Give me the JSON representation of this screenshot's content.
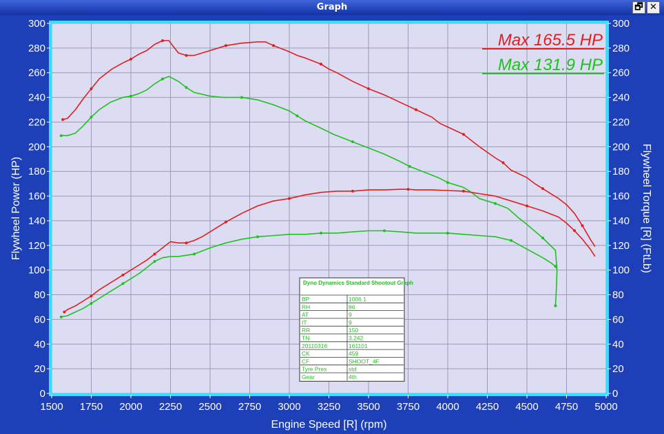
{
  "window": {
    "title": "Graph",
    "restore_icon": "restore-icon",
    "close_icon": "close-icon",
    "restore_glyph": "🗗",
    "close_glyph": "✕"
  },
  "colors": {
    "background": "#1d3fb8",
    "plot_bg": "#dcdcf2",
    "frame": "#33e0ff",
    "grid": "#9a9ab4",
    "red": "#e01e1e",
    "green": "#1ec21e",
    "axis_text": "#ffffff"
  },
  "chart_data": {
    "type": "line",
    "xlabel": "Engine Speed [R] (rpm)",
    "ylabel": "Flywheel Power (HP)",
    "y2label": "Flywheel Torque [R] (FtLb)",
    "xlim": [
      1500,
      5000
    ],
    "ylim": [
      0,
      300
    ],
    "y2lim": [
      0,
      300
    ],
    "xticks": [
      1500,
      1750,
      2000,
      2250,
      2500,
      2750,
      3000,
      3250,
      3500,
      3750,
      4000,
      4250,
      4500,
      4750,
      5000
    ],
    "yticks": [
      0,
      20,
      40,
      60,
      80,
      100,
      120,
      140,
      160,
      180,
      200,
      220,
      240,
      260,
      280,
      300
    ],
    "grid": true,
    "legend_position": "top-right",
    "legend": [
      {
        "text": "Max 165.5 HP",
        "color": "#e01e1e"
      },
      {
        "text": "Max 131.9 HP",
        "color": "#1ec21e"
      }
    ],
    "series": [
      {
        "color": "#e01e1e",
        "axis": "right",
        "markers": true,
        "x": [
          1570,
          1600,
          1650,
          1700,
          1750,
          1800,
          1880,
          1950,
          2000,
          2050,
          2100,
          2150,
          2200,
          2240,
          2270,
          2300,
          2350,
          2400,
          2450,
          2500,
          2600,
          2700,
          2800,
          2850,
          2900,
          3000,
          3050,
          3100,
          3200,
          3250,
          3300,
          3400,
          3500,
          3600,
          3700,
          3750,
          3800,
          3900,
          3950,
          4000,
          4100,
          4150,
          4200,
          4300,
          4350,
          4400,
          4500,
          4550,
          4600,
          4700,
          4750,
          4800,
          4850,
          4900,
          4930
        ],
        "y": [
          222,
          223,
          230,
          239,
          247,
          255,
          263,
          268,
          271,
          275,
          278,
          283,
          286,
          286,
          281,
          276,
          274,
          274,
          276,
          278,
          282,
          284,
          285,
          285,
          282,
          277,
          274,
          272,
          267,
          263,
          260,
          253,
          247,
          242,
          236,
          233,
          230,
          224,
          219,
          216,
          210,
          205,
          200,
          191,
          187,
          181,
          175,
          170,
          166,
          158,
          153,
          146,
          136,
          125,
          119
        ]
      },
      {
        "color": "#1ec21e",
        "axis": "right",
        "markers": true,
        "x": [
          1560,
          1600,
          1650,
          1700,
          1750,
          1800,
          1870,
          1950,
          2000,
          2050,
          2100,
          2150,
          2200,
          2240,
          2270,
          2300,
          2350,
          2400,
          2500,
          2580,
          2700,
          2800,
          2900,
          3000,
          3050,
          3100,
          3200,
          3280,
          3400,
          3500,
          3600,
          3700,
          3760,
          3800,
          3900,
          3940,
          4000,
          4100,
          4150,
          4200,
          4300,
          4380,
          4450,
          4500,
          4600,
          4680,
          4690,
          4685,
          4680
        ],
        "y": [
          209,
          209,
          211,
          217,
          224,
          230,
          236,
          240,
          241,
          243,
          246,
          251,
          255,
          257,
          255,
          253,
          248,
          244,
          241,
          240,
          240,
          238,
          234,
          229,
          225,
          221,
          215,
          210,
          204,
          199,
          194,
          188,
          184,
          182,
          177,
          175,
          171,
          167,
          163,
          158,
          154,
          150,
          142,
          137,
          126,
          116,
          100,
          83,
          71
        ]
      },
      {
        "color": "#e01e1e",
        "axis": "left",
        "markers": true,
        "x": [
          1580,
          1600,
          1650,
          1700,
          1750,
          1800,
          1850,
          1900,
          1950,
          2000,
          2050,
          2100,
          2150,
          2200,
          2250,
          2300,
          2350,
          2400,
          2450,
          2500,
          2600,
          2700,
          2800,
          2900,
          3000,
          3100,
          3200,
          3300,
          3400,
          3500,
          3600,
          3700,
          3750,
          3800,
          3900,
          4000,
          4100,
          4200,
          4300,
          4400,
          4500,
          4600,
          4700,
          4750,
          4800,
          4850,
          4900,
          4930
        ],
        "y": [
          66,
          68,
          71,
          75,
          79,
          84,
          88,
          92,
          96,
          100,
          104,
          108,
          113,
          118,
          123,
          122,
          122,
          124,
          127,
          131,
          139,
          146,
          152,
          156,
          158,
          161,
          163,
          164,
          164,
          165,
          165,
          165.5,
          165.5,
          165,
          165,
          164.5,
          164,
          162,
          160,
          156,
          152,
          148,
          143,
          138,
          132,
          125,
          117,
          111
        ]
      },
      {
        "color": "#1ec21e",
        "axis": "left",
        "markers": true,
        "x": [
          1560,
          1600,
          1650,
          1700,
          1750,
          1800,
          1850,
          1900,
          1950,
          2000,
          2050,
          2100,
          2150,
          2200,
          2250,
          2300,
          2400,
          2500,
          2600,
          2700,
          2800,
          2900,
          3000,
          3100,
          3200,
          3300,
          3400,
          3500,
          3600,
          3700,
          3800,
          3900,
          4000,
          4100,
          4200,
          4300,
          4400,
          4500,
          4600,
          4650,
          4680,
          4690
        ],
        "y": [
          62,
          63,
          66,
          69,
          73,
          77,
          81,
          85,
          89,
          93,
          97,
          102,
          107,
          110,
          111,
          111,
          113,
          118,
          122,
          125,
          127,
          128,
          129,
          129,
          130,
          130,
          131,
          131.9,
          131.9,
          131,
          130,
          130,
          130,
          129,
          128,
          127,
          124,
          117,
          110,
          106,
          103,
          101
        ]
      }
    ]
  },
  "info_box": {
    "header": "Dyno Dynamics Standard Shootout Graph",
    "rows": [
      [
        "BP",
        "1006.1"
      ],
      [
        "RH",
        "86"
      ],
      [
        "AT",
        "9"
      ],
      [
        "IT",
        "9"
      ],
      [
        "RR",
        "150"
      ],
      [
        "TN",
        "3.242"
      ],
      [
        "20110316",
        "161101"
      ],
      [
        "CK",
        "459"
      ],
      [
        "CF",
        "SHOOT_4F"
      ],
      [
        "Tyre Pres",
        "std"
      ],
      [
        "Gear",
        "4th"
      ]
    ]
  }
}
